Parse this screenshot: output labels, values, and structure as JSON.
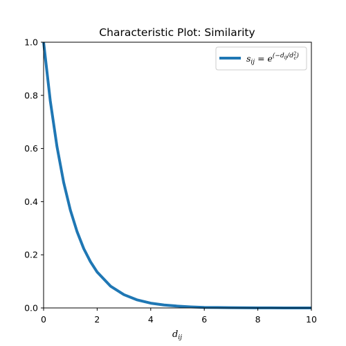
{
  "chart_data": {
    "type": "line",
    "title": "Characteristic Plot: Similarity",
    "xlabel": "d_ij",
    "ylabel": "",
    "xlim": [
      0,
      10
    ],
    "ylim": [
      0,
      1
    ],
    "x_ticks": [
      0,
      2,
      4,
      6,
      8,
      10
    ],
    "y_ticks": [
      0.0,
      0.2,
      0.4,
      0.6,
      0.8,
      1.0
    ],
    "x_tick_labels": [
      "0",
      "2",
      "4",
      "6",
      "8",
      "10"
    ],
    "y_tick_labels": [
      "0.0",
      "0.2",
      "0.4",
      "0.6",
      "0.8",
      "1.0"
    ],
    "grid": false,
    "legend_position": "top-right",
    "series": [
      {
        "name": "s_ij = e^(−d_ij/d_c^2)",
        "color": "#1f77b4",
        "x": [
          0,
          0.25,
          0.5,
          0.75,
          1,
          1.25,
          1.5,
          1.75,
          2,
          2.5,
          3,
          3.5,
          4,
          4.5,
          5,
          5.5,
          6,
          6.5,
          7,
          7.5,
          8,
          8.5,
          9,
          9.5,
          10
        ],
        "y": [
          1.0,
          0.779,
          0.607,
          0.472,
          0.368,
          0.287,
          0.223,
          0.174,
          0.135,
          0.082,
          0.05,
          0.03,
          0.018,
          0.011,
          0.007,
          0.004,
          0.002,
          0.0015,
          0.0009,
          0.0006,
          0.0003,
          0.0002,
          0.0001,
          0.0001,
          0.0
        ]
      }
    ]
  }
}
